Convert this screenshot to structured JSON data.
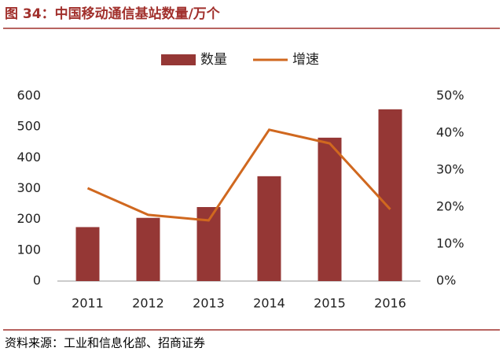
{
  "chart_data": {
    "type": "bar-line",
    "title": "图 34：中国移动通信基站数量/万个",
    "source": "资料来源：工业和信息化部、招商证券",
    "categories": [
      "2011",
      "2012",
      "2013",
      "2014",
      "2015",
      "2016"
    ],
    "series": [
      {
        "name": "数量",
        "type": "bar",
        "color": "#953735",
        "values": [
          175,
          205,
          240,
          340,
          465,
          557
        ]
      },
      {
        "name": "增速",
        "type": "line",
        "axis": "y2",
        "color": "#d0681f",
        "values": [
          25.1,
          17.9,
          16.4,
          40.9,
          37.2,
          19.4
        ]
      }
    ],
    "ylim": [
      0,
      600
    ],
    "yticks": [
      0,
      100,
      200,
      300,
      400,
      500,
      600
    ],
    "y2lim": [
      0,
      50
    ],
    "y2ticks": [
      {
        "value": 0,
        "label": "0%"
      },
      {
        "value": 10,
        "label": "10%"
      },
      {
        "value": 20,
        "label": "20%"
      },
      {
        "value": 30,
        "label": "30%"
      },
      {
        "value": 40,
        "label": "40%"
      },
      {
        "value": 50,
        "label": "50%"
      }
    ],
    "legend": "top"
  }
}
